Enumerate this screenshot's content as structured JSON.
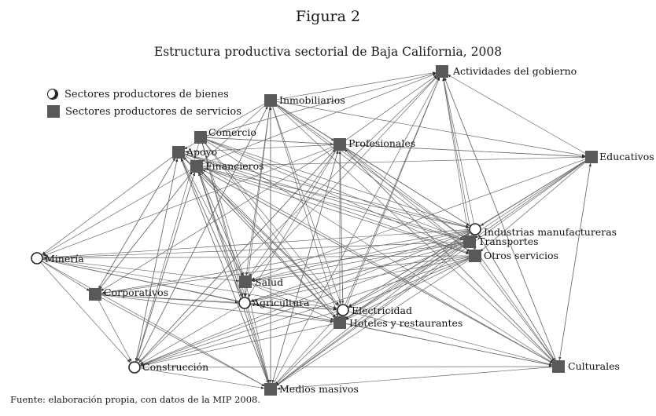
{
  "figure_label": "Figura 2",
  "title": "Estructura productiva sectorial de Baja California, 2008",
  "legend": {
    "goods": "Sectores productores de bienes",
    "services": "Sectores productores de servicios"
  },
  "source_note": "Fuente: elaboración propia, con datos de la MIP 2008.",
  "colors": {
    "node_fill": "#595959",
    "edge": "#6a6a6a",
    "text": "#1a1a1a"
  },
  "nodes": [
    {
      "id": "actividades",
      "label": "Actividades del gobierno",
      "type": "services"
    },
    {
      "id": "inmobiliarios",
      "label": "Inmobiliarios",
      "type": "services"
    },
    {
      "id": "comercio",
      "label": "Comercio",
      "type": "services"
    },
    {
      "id": "profesionales",
      "label": "Profesionales",
      "type": "services"
    },
    {
      "id": "apoyo",
      "label": "Apoyo",
      "type": "services"
    },
    {
      "id": "financieros",
      "label": "Financieros",
      "type": "services"
    },
    {
      "id": "educativos",
      "label": "Educativos",
      "type": "services"
    },
    {
      "id": "industrias",
      "label": "Industrias manufactureras",
      "type": "goods"
    },
    {
      "id": "transportes",
      "label": "Transportes",
      "type": "services"
    },
    {
      "id": "otros",
      "label": "Otros servicios",
      "type": "services"
    },
    {
      "id": "mineria",
      "label": "Minería",
      "type": "goods"
    },
    {
      "id": "salud",
      "label": "Salud",
      "type": "services"
    },
    {
      "id": "corporativos",
      "label": "Corporativos",
      "type": "services"
    },
    {
      "id": "agricultura",
      "label": "Agricultura",
      "type": "goods"
    },
    {
      "id": "electricidad",
      "label": "Electricidad",
      "type": "goods"
    },
    {
      "id": "hoteles",
      "label": "Hoteles y restaurantes",
      "type": "services"
    },
    {
      "id": "construccion",
      "label": "Construcción",
      "type": "goods"
    },
    {
      "id": "culturales",
      "label": "Culturales",
      "type": "services"
    },
    {
      "id": "medios",
      "label": "Medios masivos",
      "type": "services"
    }
  ],
  "edges": [
    [
      "inmobiliarios",
      "actividades"
    ],
    [
      "profesionales",
      "actividades"
    ],
    [
      "financieros",
      "actividades"
    ],
    [
      "transportes",
      "actividades"
    ],
    [
      "industrias",
      "actividades"
    ],
    [
      "otros",
      "actividades"
    ],
    [
      "electricidad",
      "actividades"
    ],
    [
      "hoteles",
      "actividades"
    ],
    [
      "educativos",
      "actividades"
    ],
    [
      "culturales",
      "actividades"
    ],
    [
      "construccion",
      "actividades"
    ],
    [
      "medios",
      "actividades"
    ],
    [
      "salud",
      "actividades"
    ],
    [
      "comercio",
      "actividades"
    ],
    [
      "inmobiliarios",
      "profesionales"
    ],
    [
      "inmobiliarios",
      "financieros"
    ],
    [
      "inmobiliarios",
      "salud"
    ],
    [
      "inmobiliarios",
      "agricultura"
    ],
    [
      "inmobiliarios",
      "electricidad"
    ],
    [
      "inmobiliarios",
      "hoteles"
    ],
    [
      "inmobiliarios",
      "industrias"
    ],
    [
      "inmobiliarios",
      "transportes"
    ],
    [
      "inmobiliarios",
      "otros"
    ],
    [
      "inmobiliarios",
      "medios"
    ],
    [
      "inmobiliarios",
      "apoyo"
    ],
    [
      "inmobiliarios",
      "educativos"
    ],
    [
      "inmobiliarios",
      "culturales"
    ],
    [
      "inmobiliarios",
      "construccion"
    ],
    [
      "comercio",
      "profesionales"
    ],
    [
      "comercio",
      "salud"
    ],
    [
      "comercio",
      "agricultura"
    ],
    [
      "comercio",
      "electricidad"
    ],
    [
      "comercio",
      "hoteles"
    ],
    [
      "comercio",
      "industrias"
    ],
    [
      "comercio",
      "transportes"
    ],
    [
      "comercio",
      "otros"
    ],
    [
      "comercio",
      "construccion"
    ],
    [
      "comercio",
      "medios"
    ],
    [
      "comercio",
      "educativos"
    ],
    [
      "comercio",
      "culturales"
    ],
    [
      "profesionales",
      "educativos"
    ],
    [
      "profesionales",
      "industrias"
    ],
    [
      "profesionales",
      "transportes"
    ],
    [
      "profesionales",
      "otros"
    ],
    [
      "profesionales",
      "salud"
    ],
    [
      "profesionales",
      "agricultura"
    ],
    [
      "profesionales",
      "electricidad"
    ],
    [
      "profesionales",
      "hoteles"
    ],
    [
      "profesionales",
      "construccion"
    ],
    [
      "profesionales",
      "medios"
    ],
    [
      "profesionales",
      "corporativos"
    ],
    [
      "profesionales",
      "culturales"
    ],
    [
      "profesionales",
      "apoyo"
    ],
    [
      "profesionales",
      "mineria"
    ],
    [
      "apoyo",
      "industrias"
    ],
    [
      "apoyo",
      "transportes"
    ],
    [
      "apoyo",
      "otros"
    ],
    [
      "apoyo",
      "salud"
    ],
    [
      "apoyo",
      "agricultura"
    ],
    [
      "apoyo",
      "electricidad"
    ],
    [
      "apoyo",
      "hoteles"
    ],
    [
      "apoyo",
      "medios"
    ],
    [
      "apoyo",
      "construccion"
    ],
    [
      "apoyo",
      "corporativos"
    ],
    [
      "apoyo",
      "mineria"
    ],
    [
      "apoyo",
      "culturales"
    ],
    [
      "financieros",
      "industrias"
    ],
    [
      "financieros",
      "transportes"
    ],
    [
      "financieros",
      "otros"
    ],
    [
      "financieros",
      "salud"
    ],
    [
      "financieros",
      "agricultura"
    ],
    [
      "financieros",
      "electricidad"
    ],
    [
      "financieros",
      "hoteles"
    ],
    [
      "financieros",
      "medios"
    ],
    [
      "financieros",
      "construccion"
    ],
    [
      "financieros",
      "corporativos"
    ],
    [
      "financieros",
      "educativos"
    ],
    [
      "financieros",
      "culturales"
    ],
    [
      "financieros",
      "mineria"
    ],
    [
      "educativos",
      "industrias"
    ],
    [
      "educativos",
      "transportes"
    ],
    [
      "educativos",
      "otros"
    ],
    [
      "educativos",
      "culturales"
    ],
    [
      "educativos",
      "salud"
    ],
    [
      "educativos",
      "hoteles"
    ],
    [
      "educativos",
      "electricidad"
    ],
    [
      "educativos",
      "medios"
    ],
    [
      "industrias",
      "otros"
    ],
    [
      "industrias",
      "mineria"
    ],
    [
      "industrias",
      "salud"
    ],
    [
      "industrias",
      "agricultura"
    ],
    [
      "industrias",
      "electricidad"
    ],
    [
      "industrias",
      "hoteles"
    ],
    [
      "industrias",
      "construccion"
    ],
    [
      "industrias",
      "corporativos"
    ],
    [
      "industrias",
      "culturales"
    ],
    [
      "industrias",
      "medios"
    ],
    [
      "transportes",
      "mineria"
    ],
    [
      "transportes",
      "salud"
    ],
    [
      "transportes",
      "agricultura"
    ],
    [
      "transportes",
      "electricidad"
    ],
    [
      "transportes",
      "hoteles"
    ],
    [
      "transportes",
      "construccion"
    ],
    [
      "transportes",
      "corporativos"
    ],
    [
      "transportes",
      "culturales"
    ],
    [
      "transportes",
      "medios"
    ],
    [
      "otros",
      "mineria"
    ],
    [
      "otros",
      "salud"
    ],
    [
      "otros",
      "agricultura"
    ],
    [
      "otros",
      "electricidad"
    ],
    [
      "otros",
      "hoteles"
    ],
    [
      "otros",
      "construccion"
    ],
    [
      "otros",
      "culturales"
    ],
    [
      "otros",
      "medios"
    ],
    [
      "mineria",
      "salud"
    ],
    [
      "mineria",
      "agricultura"
    ],
    [
      "mineria",
      "electricidad"
    ],
    [
      "mineria",
      "hoteles"
    ],
    [
      "mineria",
      "construccion"
    ],
    [
      "mineria",
      "medios"
    ],
    [
      "mineria",
      "corporativos"
    ],
    [
      "salud",
      "agricultura"
    ],
    [
      "salud",
      "electricidad"
    ],
    [
      "salud",
      "hoteles"
    ],
    [
      "salud",
      "medios"
    ],
    [
      "corporativos",
      "construccion"
    ],
    [
      "corporativos",
      "agricultura"
    ],
    [
      "corporativos",
      "hoteles"
    ],
    [
      "corporativos",
      "medios"
    ],
    [
      "corporativos",
      "electricidad"
    ],
    [
      "agricultura",
      "electricidad"
    ],
    [
      "agricultura",
      "hoteles"
    ],
    [
      "agricultura",
      "medios"
    ],
    [
      "agricultura",
      "construccion"
    ],
    [
      "agricultura",
      "culturales"
    ],
    [
      "electricidad",
      "hoteles"
    ],
    [
      "electricidad",
      "culturales"
    ],
    [
      "electricidad",
      "medios"
    ],
    [
      "electricidad",
      "construccion"
    ],
    [
      "hoteles",
      "culturales"
    ],
    [
      "hoteles",
      "medios"
    ],
    [
      "hoteles",
      "construccion"
    ],
    [
      "construccion",
      "medios"
    ],
    [
      "construccion",
      "culturales"
    ],
    [
      "construccion",
      "profesionales"
    ],
    [
      "culturales",
      "medios"
    ],
    [
      "culturales",
      "actividades"
    ],
    [
      "medios",
      "apoyo"
    ],
    [
      "medios",
      "financieros"
    ],
    [
      "medios",
      "inmobiliarios"
    ],
    [
      "medios",
      "profesionales"
    ],
    [
      "construccion",
      "apoyo"
    ],
    [
      "construccion",
      "financieros"
    ],
    [
      "construccion",
      "inmobiliarios"
    ],
    [
      "corporativos",
      "apoyo"
    ],
    [
      "corporativos",
      "financieros"
    ],
    [
      "salud",
      "financieros"
    ],
    [
      "agricultura",
      "apoyo"
    ],
    [
      "agricultura",
      "financieros"
    ],
    [
      "hoteles",
      "apoyo"
    ],
    [
      "hoteles",
      "financieros"
    ],
    [
      "electricidad",
      "profesionales"
    ],
    [
      "electricidad",
      "apoyo"
    ],
    [
      "culturales",
      "profesionales"
    ],
    [
      "culturales",
      "financieros"
    ],
    [
      "culturales",
      "industrias"
    ],
    [
      "culturales",
      "educativos"
    ]
  ]
}
